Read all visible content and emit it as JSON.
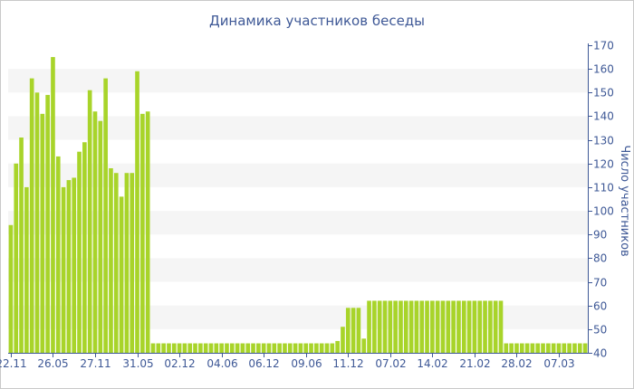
{
  "chart_data": {
    "type": "bar",
    "title": "Динамика участников беседы",
    "xlabel": "",
    "ylabel": "Число участников",
    "y_axis_side": "right",
    "ylim": [
      40,
      170
    ],
    "yticks": [
      40,
      50,
      60,
      70,
      80,
      90,
      100,
      110,
      120,
      130,
      140,
      150,
      160,
      170
    ],
    "x_tick_labels": [
      "22.11",
      "26.05",
      "27.11",
      "31.05",
      "02.12",
      "04.06",
      "06.12",
      "09.06",
      "11.12",
      "07.02",
      "14.02",
      "21.02",
      "28.02",
      "07.03"
    ],
    "x_tick_bar_index": [
      0,
      8,
      16,
      24,
      32,
      40,
      48,
      56,
      64,
      72,
      80,
      88,
      96,
      104
    ],
    "values": [
      94,
      120,
      131,
      110,
      156,
      150,
      141,
      149,
      165,
      123,
      110,
      113,
      114,
      125,
      129,
      151,
      142,
      138,
      156,
      118,
      116,
      106,
      116,
      116,
      159,
      141,
      142,
      44,
      44,
      44,
      44,
      44,
      44,
      44,
      44,
      44,
      44,
      44,
      44,
      44,
      44,
      44,
      44,
      44,
      44,
      44,
      44,
      44,
      44,
      44,
      44,
      44,
      44,
      44,
      44,
      44,
      44,
      44,
      44,
      44,
      44,
      44,
      45,
      51,
      59,
      59,
      59,
      46,
      62,
      62,
      62,
      62,
      62,
      62,
      62,
      62,
      62,
      62,
      62,
      62,
      62,
      62,
      62,
      62,
      62,
      62,
      62,
      62,
      62,
      62,
      62,
      62,
      62,
      62,
      44,
      44,
      44,
      44,
      44,
      44,
      44,
      44,
      44,
      44,
      44,
      44,
      44,
      44,
      44,
      44
    ],
    "grid": "alternating horizontal bands",
    "colors": {
      "bar": "#a8d42a",
      "band": "#f5f5f5",
      "text": "#3e5896",
      "axis": "#3e5896"
    }
  }
}
